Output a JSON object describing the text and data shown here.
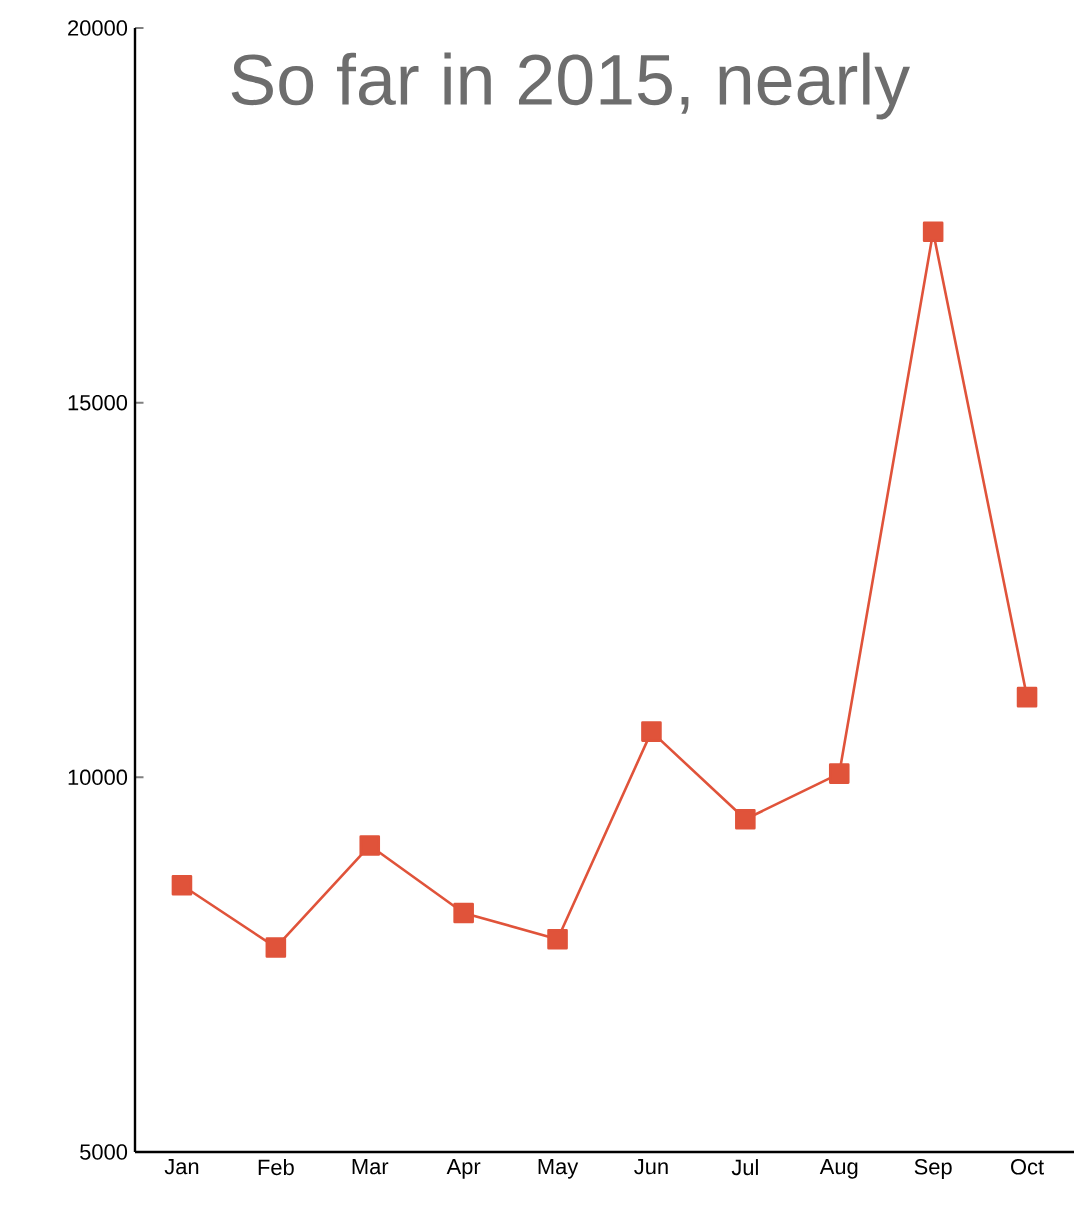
{
  "chart_data": {
    "type": "line",
    "title": "So far in 2015, nearly",
    "categories": [
      "Jan",
      "Feb",
      "Mar",
      "Apr",
      "May",
      "Jun",
      "Jul",
      "Aug",
      "Sep",
      "Oct"
    ],
    "series": [
      {
        "color": "#e0533a",
        "values": [
          8560,
          7730,
          9090,
          8190,
          7840,
          10610,
          9440,
          10050,
          17280,
          11070
        ]
      }
    ],
    "ylim": [
      5000,
      20000
    ],
    "yticks": [
      5000,
      10000,
      15000,
      20000
    ],
    "grid": false,
    "marker": "square",
    "line_style": "solid"
  }
}
